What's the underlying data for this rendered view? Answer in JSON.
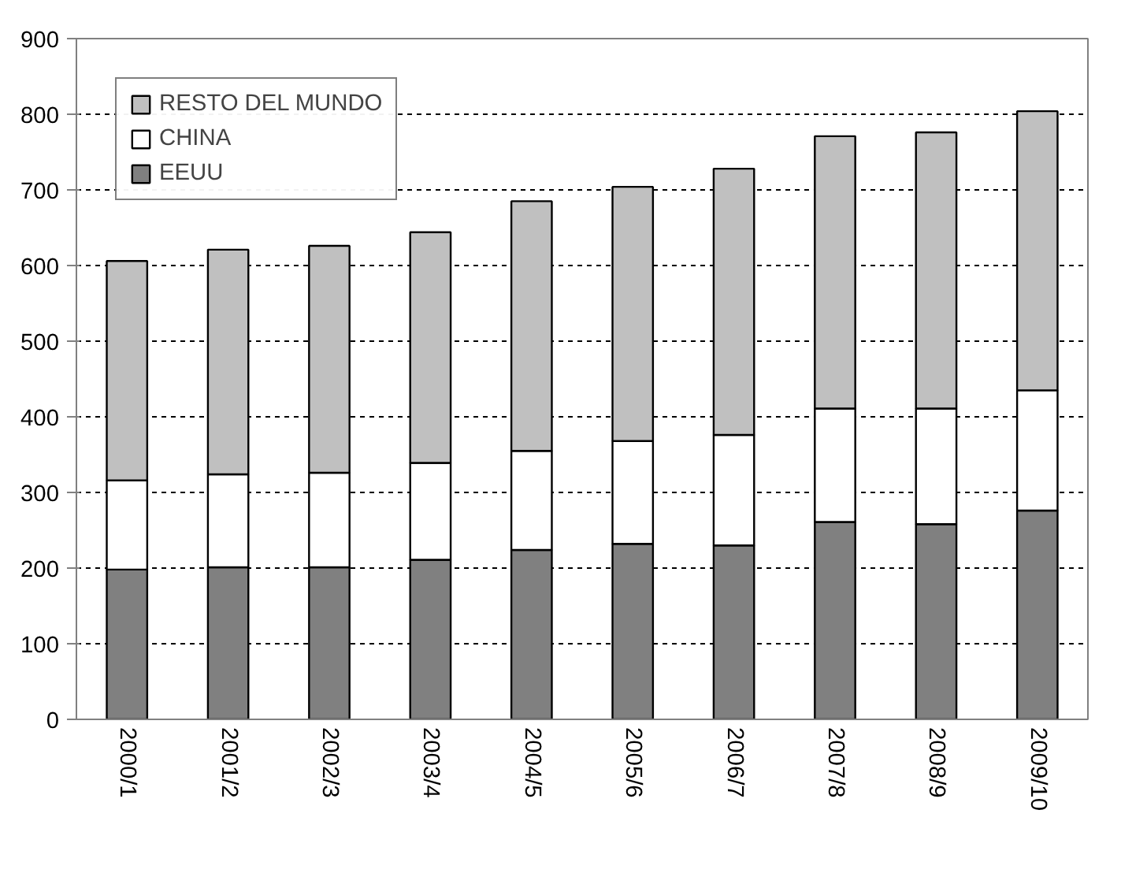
{
  "chart_data": {
    "type": "bar",
    "stacked": true,
    "categories": [
      "2000/1",
      "2001/2",
      "2002/3",
      "2003/4",
      "2004/5",
      "2005/6",
      "2006/7",
      "2007/8",
      "2008/9",
      "2009/10"
    ],
    "series": [
      {
        "name": "EEUU",
        "color": "#808080",
        "values": [
          198,
          201,
          201,
          211,
          224,
          232,
          230,
          261,
          258,
          276
        ]
      },
      {
        "name": "CHINA",
        "color": "#ffffff",
        "values": [
          118,
          123,
          125,
          128,
          131,
          136,
          146,
          150,
          153,
          159
        ]
      },
      {
        "name": "RESTO DEL MUNDO",
        "color": "#c0c0c0",
        "values": [
          290,
          297,
          300,
          305,
          330,
          336,
          352,
          360,
          365,
          369
        ]
      }
    ],
    "ylim": [
      0,
      900
    ],
    "yticks": [
      0,
      100,
      200,
      300,
      400,
      500,
      600,
      700,
      800,
      900
    ],
    "grid": "y",
    "legend": "top left"
  }
}
